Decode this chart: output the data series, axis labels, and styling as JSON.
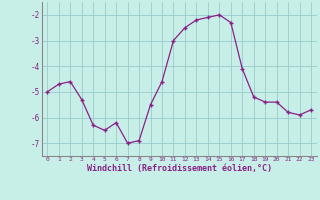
{
  "x": [
    0,
    1,
    2,
    3,
    4,
    5,
    6,
    7,
    8,
    9,
    10,
    11,
    12,
    13,
    14,
    15,
    16,
    17,
    18,
    19,
    20,
    21,
    22,
    23
  ],
  "y": [
    -5.0,
    -4.7,
    -4.6,
    -5.3,
    -6.3,
    -6.5,
    -6.2,
    -7.0,
    -6.9,
    -5.5,
    -4.6,
    -3.0,
    -2.5,
    -2.2,
    -2.1,
    -2.0,
    -2.3,
    -4.1,
    -5.2,
    -5.4,
    -5.4,
    -5.8,
    -5.9,
    -5.7
  ],
  "line_color": "#882288",
  "marker": "+",
  "bg_color": "#c8eee8",
  "grid_color": "#99cccc",
  "xlabel": "Windchill (Refroidissement éolien,°C)",
  "xlabel_color": "#882288",
  "tick_color": "#882288",
  "spine_color": "#888888",
  "ylim": [
    -7.5,
    -1.5
  ],
  "yticks": [
    -7,
    -6,
    -5,
    -4,
    -3,
    -2
  ],
  "xlim": [
    -0.5,
    23.5
  ],
  "xticks": [
    0,
    1,
    2,
    3,
    4,
    5,
    6,
    7,
    8,
    9,
    10,
    11,
    12,
    13,
    14,
    15,
    16,
    17,
    18,
    19,
    20,
    21,
    22,
    23
  ]
}
